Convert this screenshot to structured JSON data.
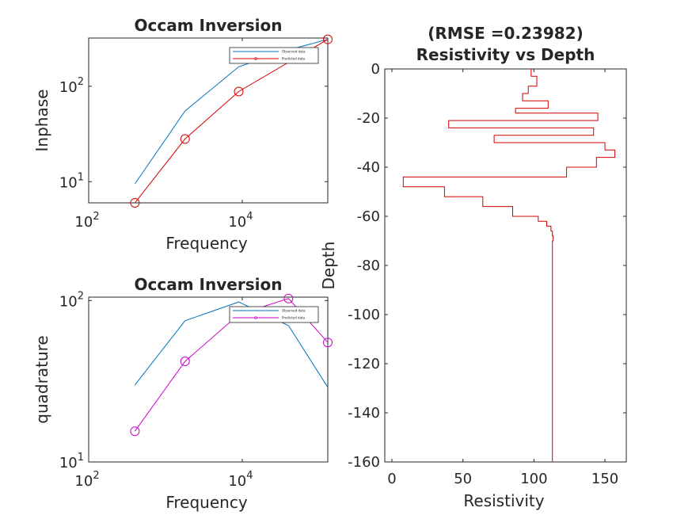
{
  "chart_data": [
    {
      "id": "inphase",
      "type": "line",
      "title": "Occam Inversion",
      "xlabel": "Frequency",
      "ylabel": "Inphase",
      "xscale": "log",
      "yscale": "log",
      "xlim": [
        100,
        130000
      ],
      "ylim": [
        6,
        320
      ],
      "xticks": [
        100,
        10000
      ],
      "xtick_labels": [
        {
          "base": "10",
          "exp": "2"
        },
        {
          "base": "10",
          "exp": "4"
        }
      ],
      "yticks": [
        10,
        100
      ],
      "ytick_labels": [
        {
          "base": "10",
          "exp": "1"
        },
        {
          "base": "10",
          "exp": "2"
        }
      ],
      "legend": {
        "position": "top-right",
        "entries": [
          "Observed data",
          "Predicted data"
        ]
      },
      "series": [
        {
          "name": "Observed data",
          "color": "#0072BD",
          "marker": "none",
          "x": [
            400,
            1800,
            9000,
            40000,
            130000
          ],
          "y": [
            9.5,
            55,
            160,
            240,
            310
          ]
        },
        {
          "name": "Predicted data",
          "color": "#D40000",
          "marker": "circle",
          "x": [
            400,
            1800,
            9000,
            130000
          ],
          "y": [
            6,
            28,
            88,
            310
          ]
        }
      ]
    },
    {
      "id": "quadrature",
      "type": "line",
      "title": "Occam Inversion",
      "xlabel": "Frequency",
      "ylabel": "quadrature",
      "xscale": "log",
      "yscale": "log",
      "xlim": [
        100,
        130000
      ],
      "ylim": [
        10,
        105
      ],
      "xticks": [
        100,
        10000
      ],
      "xtick_labels": [
        {
          "base": "10",
          "exp": "2"
        },
        {
          "base": "10",
          "exp": "4"
        }
      ],
      "yticks": [
        10,
        100
      ],
      "ytick_labels": [
        {
          "base": "10",
          "exp": "1"
        },
        {
          "base": "10",
          "exp": "2"
        }
      ],
      "legend": {
        "position": "top-right",
        "entries": [
          "Observed data",
          "Predicted data"
        ]
      },
      "series": [
        {
          "name": "Observed data",
          "color": "#0072BD",
          "marker": "none",
          "x": [
            400,
            1800,
            9000,
            40000,
            130000
          ],
          "y": [
            30,
            75,
            98,
            70,
            29
          ]
        },
        {
          "name": "Predicted data",
          "color": "#CC00CC",
          "marker": "circle",
          "x": [
            400,
            1800,
            9000,
            40000,
            130000
          ],
          "y": [
            15.5,
            42,
            82,
            103,
            55
          ]
        }
      ]
    },
    {
      "id": "resistivity",
      "type": "line",
      "title": [
        "(RMSE =0.23982)",
        "Resistivity vs Depth"
      ],
      "xlabel": "Resistivity",
      "ylabel": "Depth",
      "xlim": [
        -5,
        165
      ],
      "ylim": [
        -160,
        0
      ],
      "xticks": [
        0,
        50,
        100,
        150
      ],
      "yticks": [
        0,
        -20,
        -40,
        -60,
        -80,
        -100,
        -120,
        -140,
        -160
      ],
      "series": [
        {
          "color": "#D40000",
          "step": true,
          "depth": [
            0,
            -3,
            -7,
            -10,
            -13,
            -16,
            -18,
            -21,
            -24,
            -27,
            -30,
            -33,
            -36,
            -40,
            -44,
            -48,
            -52,
            -56,
            -60,
            -62,
            -64,
            -66,
            -68,
            -70,
            -160
          ],
          "resistivity": [
            98,
            102,
            96,
            92,
            110,
            87,
            145,
            40,
            142,
            72,
            150,
            157,
            144,
            123,
            8,
            37,
            64,
            85,
            103,
            109,
            112,
            113,
            113.5,
            113,
            112
          ]
        }
      ]
    }
  ],
  "colors": {
    "axes": "#262626",
    "observed": "#0072BD",
    "predicted_inphase": "#D40000",
    "predicted_quadrature": "#CC00CC",
    "resistivity": "#D40000"
  }
}
